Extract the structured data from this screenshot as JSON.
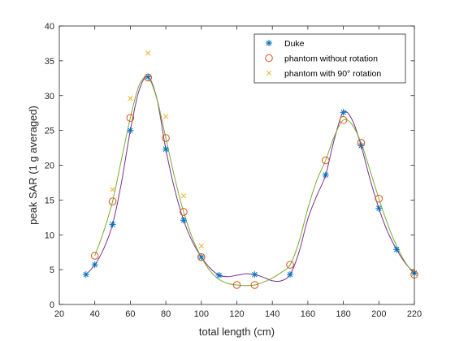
{
  "chart_data": {
    "type": "scatter",
    "title": "",
    "xlabel": "total length (cm)",
    "ylabel": "peak SAR (1 g averaged)",
    "xlim": [
      20,
      220
    ],
    "ylim": [
      0,
      40
    ],
    "xticks": [
      20,
      40,
      60,
      80,
      100,
      120,
      140,
      160,
      180,
      200,
      220
    ],
    "yticks": [
      0,
      5,
      10,
      15,
      20,
      25,
      30,
      35,
      40
    ],
    "grid": false,
    "legend_position": "top-right",
    "series": [
      {
        "name": "Duke",
        "marker": "asterisk",
        "color": "#0072BD",
        "x": [
          35,
          40,
          50,
          60,
          70,
          80,
          90,
          100,
          110,
          130,
          150,
          170,
          180,
          190,
          200,
          210,
          220
        ],
        "y": [
          4.3,
          5.7,
          11.5,
          25.0,
          32.7,
          22.3,
          12.1,
          6.8,
          4.2,
          4.3,
          4.3,
          18.6,
          27.6,
          22.8,
          13.8,
          7.9,
          4.5
        ]
      },
      {
        "name": "phantom without rotation",
        "marker": "circle",
        "color": "#D95319",
        "x": [
          40,
          50,
          60,
          70,
          80,
          90,
          100,
          120,
          130,
          150,
          170,
          180,
          190,
          200,
          220
        ],
        "y": [
          7.0,
          14.8,
          26.8,
          32.6,
          23.9,
          13.3,
          6.8,
          2.8,
          2.8,
          5.7,
          20.7,
          26.5,
          23.2,
          15.2,
          4.3
        ]
      },
      {
        "name": "phantom with 90° rotation",
        "marker": "x",
        "color": "#EDB120",
        "x": [
          50,
          60,
          70,
          80,
          90,
          100
        ],
        "y": [
          16.5,
          29.6,
          36.1,
          27.0,
          15.6,
          8.4
        ]
      }
    ],
    "fit_curves": [
      {
        "color": "#7E2F8E",
        "x": [
          35,
          40,
          45,
          50,
          55,
          60,
          65,
          70,
          75,
          80,
          85,
          90,
          95,
          100,
          105,
          110,
          115,
          120,
          125,
          130,
          135,
          140,
          145,
          150,
          155,
          160,
          165,
          170,
          175,
          180,
          185,
          190,
          195,
          200,
          205,
          210,
          215,
          220
        ],
        "y": [
          4.3,
          5.7,
          8.0,
          11.5,
          17.5,
          25.0,
          30.8,
          32.7,
          29.5,
          22.3,
          16.5,
          12.1,
          9.0,
          6.8,
          5.2,
          4.2,
          4.0,
          4.2,
          4.4,
          4.3,
          3.9,
          3.4,
          3.4,
          4.3,
          7.5,
          12.3,
          15.6,
          18.6,
          23.8,
          27.6,
          26.5,
          22.8,
          18.0,
          13.8,
          10.4,
          7.9,
          5.9,
          4.5
        ]
      },
      {
        "color": "#77AC30",
        "x": [
          40,
          45,
          50,
          55,
          60,
          65,
          70,
          75,
          80,
          85,
          90,
          95,
          100,
          105,
          110,
          115,
          120,
          125,
          130,
          135,
          140,
          145,
          150,
          155,
          160,
          165,
          170,
          175,
          180,
          185,
          190,
          195,
          200,
          205,
          210,
          215,
          220
        ],
        "y": [
          7.0,
          10.5,
          14.8,
          20.8,
          26.8,
          31.5,
          32.6,
          29.5,
          23.9,
          18.2,
          13.3,
          9.5,
          6.8,
          4.8,
          3.6,
          3.0,
          2.8,
          2.7,
          2.8,
          3.2,
          3.8,
          4.6,
          5.7,
          9.0,
          13.8,
          17.8,
          20.7,
          24.2,
          26.5,
          25.8,
          23.2,
          19.3,
          15.2,
          11.5,
          8.4,
          6.0,
          4.3
        ]
      }
    ]
  }
}
